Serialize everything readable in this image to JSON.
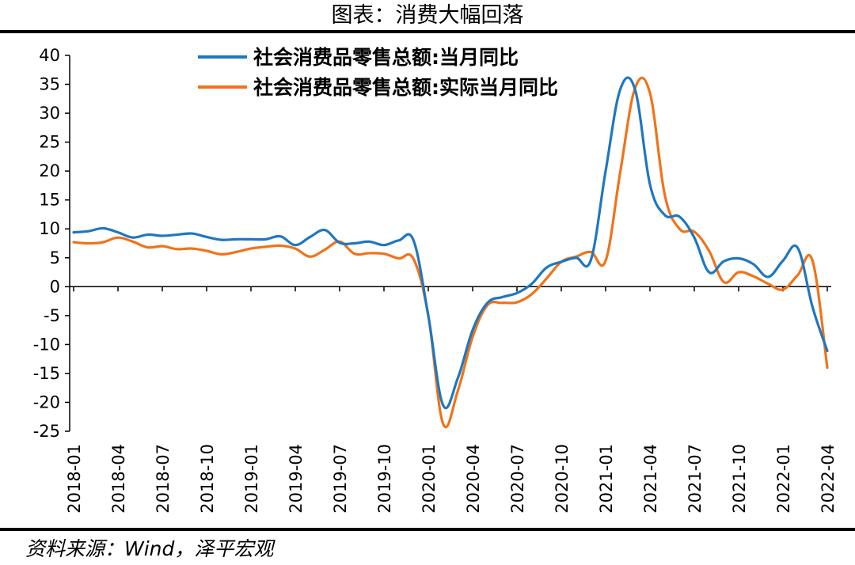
{
  "title": "图表：消费大幅回落",
  "source": "资料来源：Wind，泽平宏观",
  "colors": {
    "series1": "#1f77c0",
    "series2": "#f07318",
    "axis": "#000000"
  },
  "chart_data": {
    "type": "line",
    "title": "图表：消费大幅回落",
    "ylim": [
      -25,
      40
    ],
    "yticks": [
      40,
      35,
      30,
      25,
      20,
      15,
      10,
      5,
      0,
      -5,
      -10,
      -15,
      -20,
      -25
    ],
    "x_tick_labels": [
      "2018-01",
      "2018-04",
      "2018-07",
      "2018-10",
      "2019-01",
      "2019-04",
      "2019-07",
      "2019-10",
      "2020-01",
      "2020-04",
      "2020-07",
      "2020-10",
      "2021-01",
      "2021-04",
      "2021-07",
      "2021-10",
      "2022-01",
      "2022-04"
    ],
    "x": [
      "2018-01",
      "2018-02",
      "2018-03",
      "2018-04",
      "2018-05",
      "2018-06",
      "2018-07",
      "2018-08",
      "2018-09",
      "2018-10",
      "2018-11",
      "2018-12",
      "2019-01",
      "2019-02",
      "2019-03",
      "2019-04",
      "2019-05",
      "2019-06",
      "2019-07",
      "2019-08",
      "2019-09",
      "2019-10",
      "2019-11",
      "2019-12",
      "2020-01",
      "2020-02",
      "2020-03",
      "2020-04",
      "2020-05",
      "2020-06",
      "2020-07",
      "2020-08",
      "2020-09",
      "2020-10",
      "2020-11",
      "2020-12",
      "2021-01",
      "2021-02",
      "2021-03",
      "2021-04",
      "2021-05",
      "2021-06",
      "2021-07",
      "2021-08",
      "2021-09",
      "2021-10",
      "2021-11",
      "2021-12",
      "2022-01",
      "2022-02",
      "2022-03",
      "2022-04"
    ],
    "legend_position": "top",
    "grid": false,
    "series": [
      {
        "name": "社会消费品零售总额:当月同比",
        "values": [
          9.4,
          9.6,
          10.1,
          9.4,
          8.5,
          9.0,
          8.8,
          9.0,
          9.2,
          8.6,
          8.1,
          8.2,
          8.2,
          8.2,
          8.7,
          7.2,
          8.6,
          9.8,
          7.6,
          7.5,
          7.8,
          7.2,
          8.0,
          8.0,
          -5.0,
          -20.5,
          -15.8,
          -7.5,
          -2.8,
          -1.8,
          -1.1,
          0.5,
          3.3,
          4.3,
          5.0,
          4.6,
          20.0,
          34.2,
          34.0,
          17.7,
          12.4,
          12.1,
          8.5,
          2.5,
          4.4,
          4.9,
          3.9,
          1.7,
          4.5,
          6.7,
          -3.5,
          -11.1
        ]
      },
      {
        "name": "社会消费品零售总额:实际当月同比",
        "values": [
          7.7,
          7.5,
          7.7,
          8.5,
          7.8,
          6.8,
          7.0,
          6.5,
          6.6,
          6.2,
          5.6,
          6.0,
          6.6,
          6.9,
          7.1,
          6.6,
          5.2,
          6.4,
          7.8,
          5.7,
          5.8,
          5.7,
          4.9,
          4.8,
          -5.0,
          -23.7,
          -18.0,
          -8.7,
          -3.2,
          -2.8,
          -2.7,
          -1.3,
          1.4,
          4.3,
          5.2,
          6.0,
          4.5,
          20.0,
          34.4,
          33.5,
          15.9,
          10.0,
          9.5,
          6.2,
          0.8,
          2.5,
          1.8,
          0.5,
          -0.5,
          2.0,
          4.5,
          -14.0
        ]
      }
    ]
  }
}
